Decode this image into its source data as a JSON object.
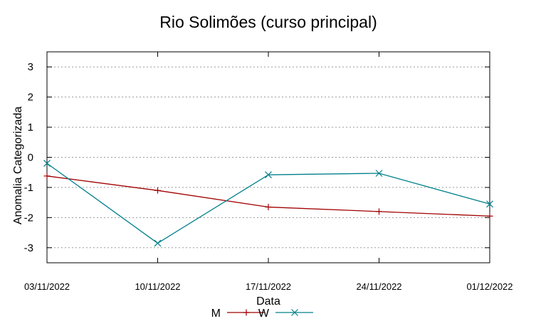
{
  "chart_data": {
    "type": "line",
    "title": "Rio Solimões (curso principal)",
    "xlabel": "Data",
    "ylabel": "Anomalia Categorizada",
    "categories": [
      "03/11/2022",
      "10/11/2022",
      "17/11/2022",
      "24/11/2022",
      "01/12/2022"
    ],
    "yticks": [
      -3,
      -2,
      -1,
      0,
      1,
      2,
      3
    ],
    "ylim": [
      -3.5,
      3.5
    ],
    "grid": true,
    "legend_position": "bottom",
    "series": [
      {
        "name": "M",
        "values": [
          -0.62,
          -1.1,
          -1.65,
          -1.8,
          -1.95
        ],
        "color": "#a00000",
        "marker": "plus"
      },
      {
        "name": "W",
        "values": [
          -0.2,
          -2.85,
          -0.58,
          -0.53,
          -1.55
        ],
        "color": "#00808b",
        "marker": "cross"
      }
    ]
  }
}
